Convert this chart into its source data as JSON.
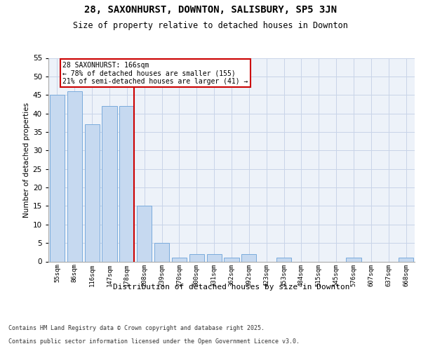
{
  "title1": "28, SAXONHURST, DOWNTON, SALISBURY, SP5 3JN",
  "title2": "Size of property relative to detached houses in Downton",
  "xlabel": "Distribution of detached houses by size in Downton",
  "ylabel": "Number of detached properties",
  "categories": [
    "55sqm",
    "86sqm",
    "116sqm",
    "147sqm",
    "178sqm",
    "208sqm",
    "239sqm",
    "270sqm",
    "300sqm",
    "331sqm",
    "362sqm",
    "392sqm",
    "423sqm",
    "453sqm",
    "484sqm",
    "515sqm",
    "545sqm",
    "576sqm",
    "607sqm",
    "637sqm",
    "668sqm"
  ],
  "values": [
    45,
    46,
    37,
    42,
    42,
    15,
    5,
    1,
    2,
    2,
    1,
    2,
    0,
    1,
    0,
    0,
    0,
    1,
    0,
    0,
    1
  ],
  "bar_color": "#c6d9f0",
  "bar_edge_color": "#7aabdc",
  "vline_color": "#cc0000",
  "vline_index": 4,
  "annotation_text": "28 SAXONHURST: 166sqm\n← 78% of detached houses are smaller (155)\n21% of semi-detached houses are larger (41) →",
  "annotation_box_edgecolor": "#cc0000",
  "ylim": [
    0,
    55
  ],
  "yticks": [
    0,
    5,
    10,
    15,
    20,
    25,
    30,
    35,
    40,
    45,
    50,
    55
  ],
  "background_color": "#edf2f9",
  "footer_line1": "Contains HM Land Registry data © Crown copyright and database right 2025.",
  "footer_line2": "Contains public sector information licensed under the Open Government Licence v3.0.",
  "grid_color": "#c8d4e8"
}
